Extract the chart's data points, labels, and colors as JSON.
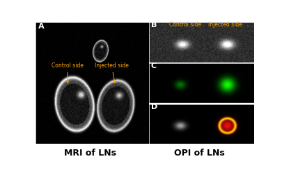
{
  "fig_width": 4.05,
  "fig_height": 2.65,
  "dpi": 100,
  "annotation_color": "#FFA500",
  "panel_A_label": "A",
  "panel_B_label": "B",
  "panel_C_label": "C",
  "panel_D_label": "D",
  "caption_left": "MRI of LNs",
  "caption_right": "OPI of LNs",
  "control_label": "Control side",
  "injected_label": "Injected side",
  "caption_fontsize": 9,
  "panel_label_fontsize": 8,
  "annotation_fontsize": 5.5
}
